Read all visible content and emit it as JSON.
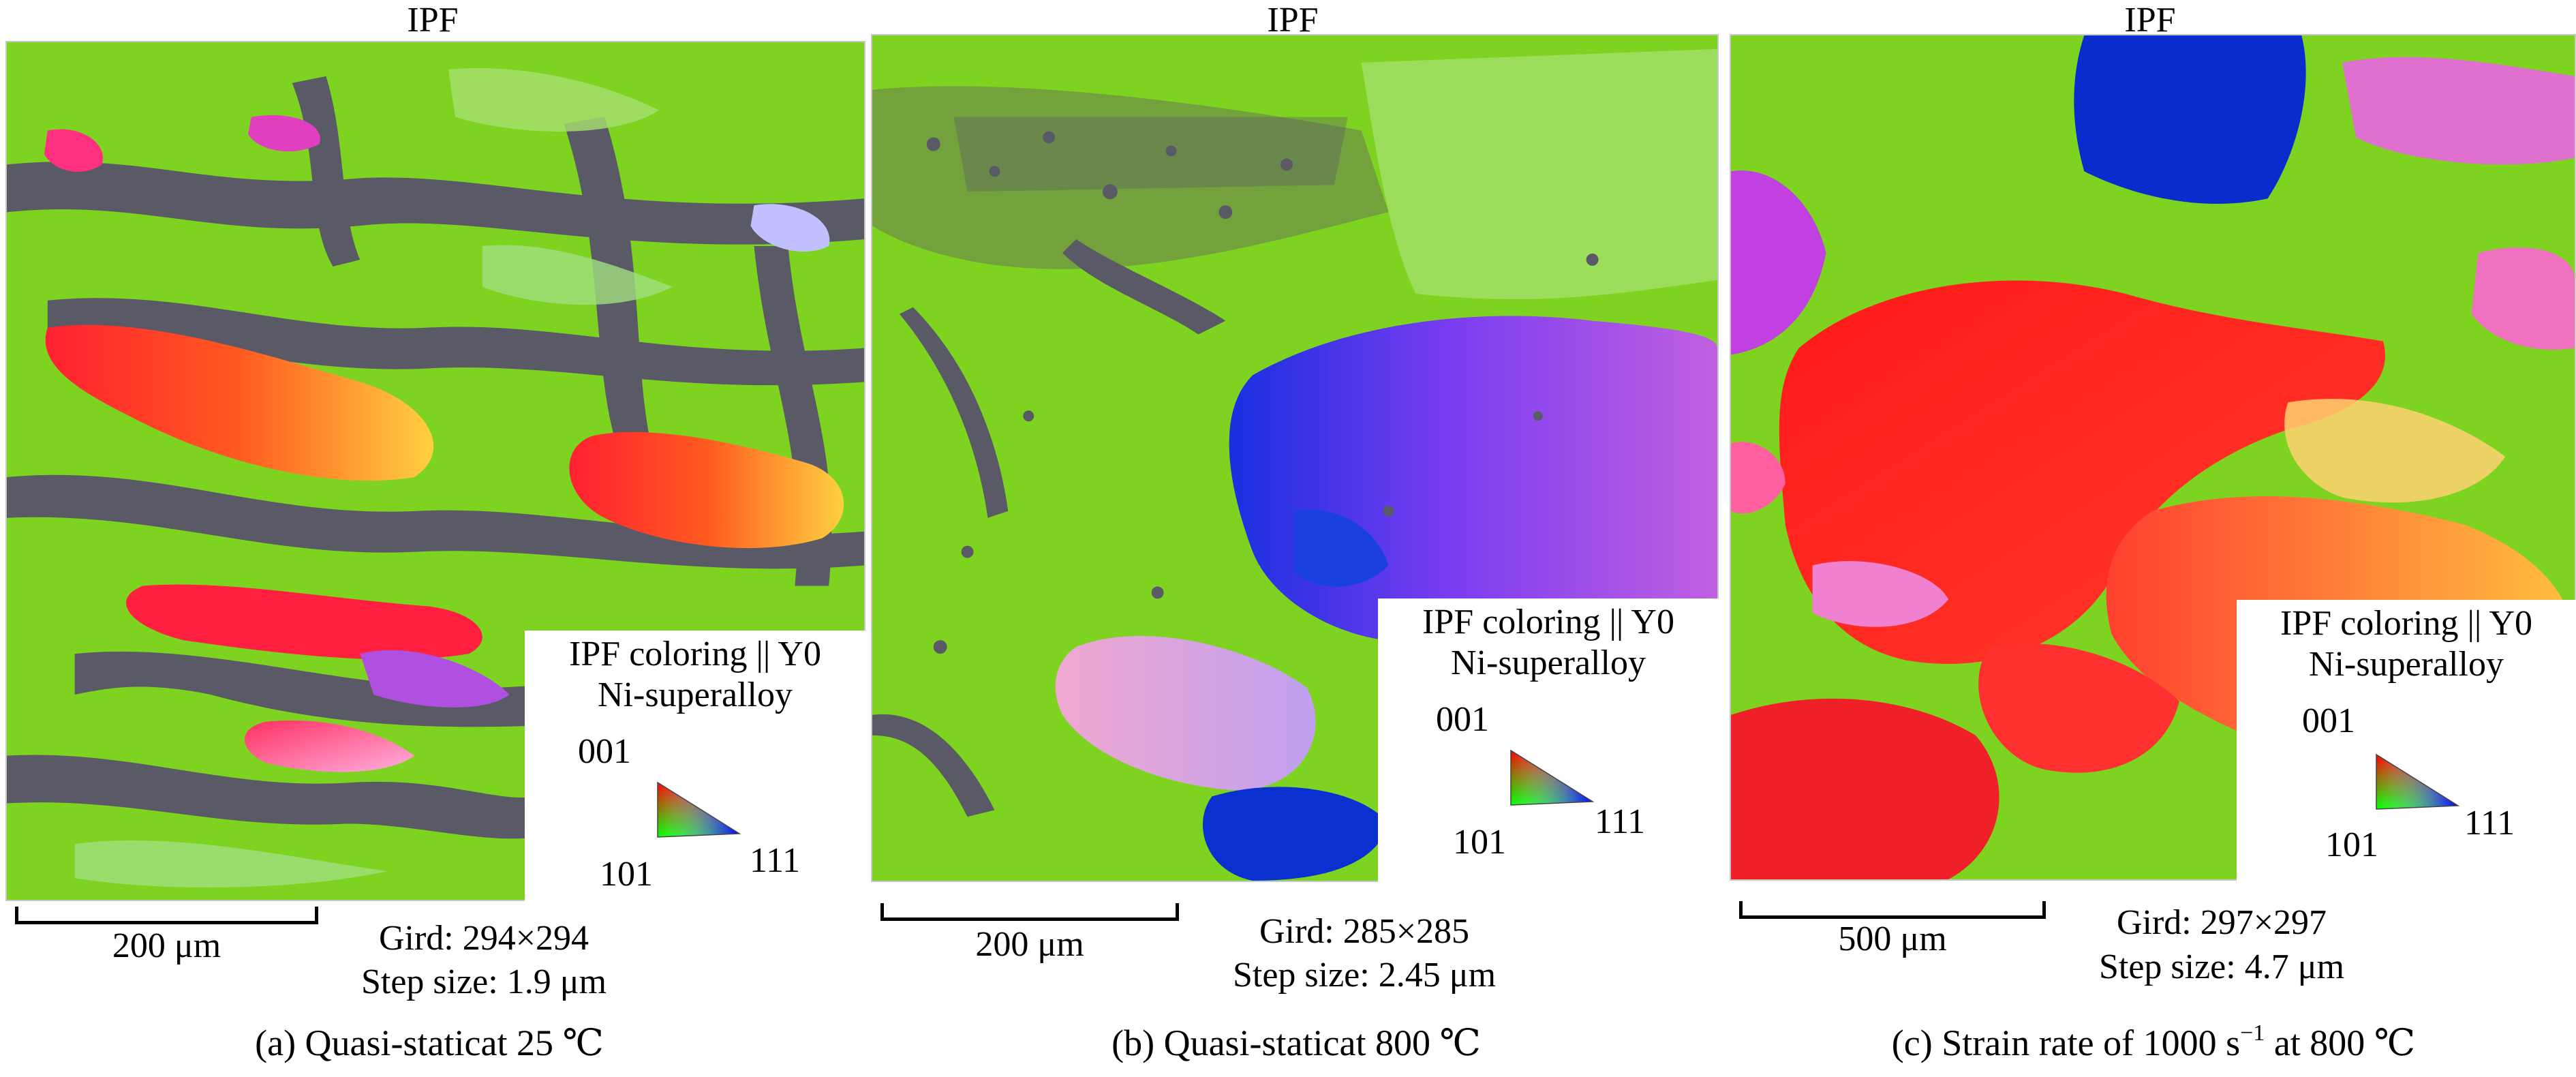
{
  "panels": [
    {
      "ipf_title": "IPF",
      "legend": {
        "line1": "IPF coloring || Y0",
        "line2": "Ni-superalloy",
        "pole_001": "001",
        "pole_101": "101",
        "pole_111": "111"
      },
      "scale_label": "200 μm",
      "grid": "Gird: 294×294",
      "step": "Step size: 1.9 μm",
      "caption": "(a) Quasi-staticat 25 ℃"
    },
    {
      "ipf_title": "IPF",
      "legend": {
        "line1": "IPF coloring || Y0",
        "line2": "Ni-superalloy",
        "pole_001": "001",
        "pole_101": "101",
        "pole_111": "111"
      },
      "scale_label": "200 μm",
      "grid": "Gird: 285×285",
      "step": "Step size: 2.45 μm",
      "caption": "(b) Quasi-staticat 800 ℃"
    },
    {
      "ipf_title": "IPF",
      "legend": {
        "line1": "IPF coloring || Y0",
        "line2": "Ni-superalloy",
        "pole_001": "001",
        "pole_101": "101",
        "pole_111": "111"
      },
      "scale_label": "500 μm",
      "grid": "Gird: 297×297",
      "step": "Step size: 4.7 μm",
      "caption_prefix": "(c) Strain rate of 1000 s",
      "caption_sup": "−1",
      "caption_suffix": " at 800 ℃"
    }
  ],
  "colors": {
    "green_grain": "#7ed321",
    "unindexed": "#5a5a66",
    "red_grain": "#f0202a",
    "blue_grain": "#0a2ccc",
    "magenta_grain": "#c050e0"
  }
}
